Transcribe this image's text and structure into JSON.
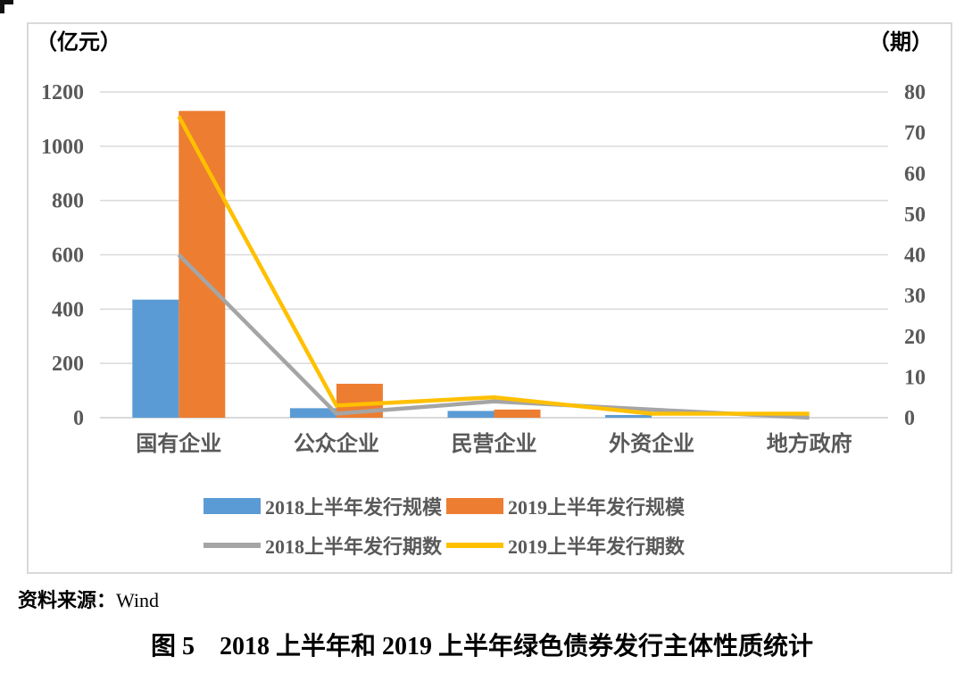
{
  "page": {
    "source_prefix": "资料来源：",
    "source_value": "Wind",
    "caption": "图 5　2018 上半年和 2019 上半年绿色债券发行主体性质统计"
  },
  "colors": {
    "grid": "#d9d9d9",
    "panel_border": "#d9d9d9",
    "axis_text": "#595959",
    "category_text": "#595959",
    "legend_text": "#595959",
    "blue": "#5B9BD5",
    "orange": "#ED7D31",
    "gray": "#A5A5A5",
    "yellow": "#FFC000"
  },
  "chart_data": {
    "type": "bar",
    "subtype": "combo-bar-line-dual-axis",
    "title": "",
    "grid": true,
    "legend_position": "bottom",
    "categories": [
      "国有企业",
      "公众企业",
      "民营企业",
      "外资企业",
      "地方政府"
    ],
    "series": [
      {
        "name": "2018上半年发行规模",
        "kind": "bar",
        "axis": "left",
        "color": "#5B9BD5",
        "values": [
          435,
          35,
          25,
          10,
          0
        ]
      },
      {
        "name": "2019上半年发行规模",
        "kind": "bar",
        "axis": "left",
        "color": "#ED7D31",
        "values": [
          1130,
          125,
          30,
          0,
          0
        ]
      },
      {
        "name": "2018上半年发行期数",
        "kind": "line",
        "axis": "right",
        "color": "#A5A5A5",
        "values": [
          40,
          1,
          4,
          2,
          0
        ]
      },
      {
        "name": "2019上半年发行期数",
        "kind": "line",
        "axis": "right",
        "color": "#FFC000",
        "values": [
          74,
          3,
          5,
          1,
          1
        ]
      }
    ],
    "left_axis": {
      "label": "（亿元）",
      "min": 0,
      "max": 1200,
      "step": 200,
      "ticks": [
        "1200",
        "1000",
        "800",
        "600",
        "400",
        "200",
        "0"
      ]
    },
    "right_axis": {
      "label": "（期）",
      "min": 0,
      "max": 80,
      "step": 10,
      "ticks": [
        "80",
        "70",
        "60",
        "50",
        "40",
        "30",
        "20",
        "10",
        "0"
      ]
    }
  }
}
